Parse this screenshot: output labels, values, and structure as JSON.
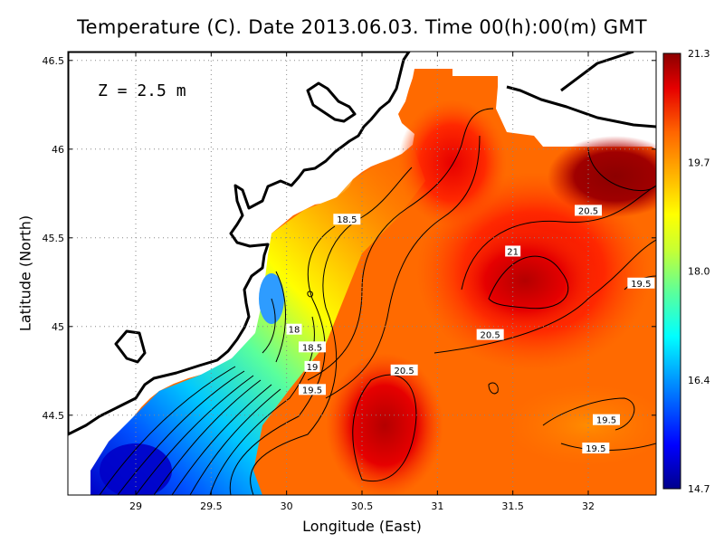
{
  "title": "Temperature (C). Date 2013.06.03. Time 00(h):00(m) GMT",
  "depth_label": "Z = 2.5 m",
  "x_axis": {
    "label": "Longitude (East)",
    "range": [
      28.55,
      32.45
    ],
    "ticks": [
      29,
      29.5,
      30,
      30.5,
      31,
      31.5,
      32
    ],
    "tick_labels": [
      "29",
      "29.5",
      "30",
      "30.5",
      "31",
      "31.5",
      "32"
    ]
  },
  "y_axis": {
    "label": "Latitude (North)",
    "range": [
      44.05,
      46.55
    ],
    "ticks": [
      44.5,
      45,
      45.5,
      46,
      46.5
    ],
    "tick_labels": [
      "44.5",
      "45",
      "45.5",
      "46",
      "46.5"
    ]
  },
  "grid": "dotted",
  "colorbar": {
    "min": 14.7,
    "max": 21.3,
    "tick_labels": [
      "21.3",
      "19.7",
      "18.0",
      "16.4",
      "14.7"
    ],
    "colors": [
      "#00008c",
      "#0000ff",
      "#0096ff",
      "#00ffff",
      "#5aff9c",
      "#c8ff32",
      "#ffff00",
      "#ffb400",
      "#ff6400",
      "#e60000",
      "#8c0000"
    ]
  },
  "contour_labels": [
    {
      "text": "18.5",
      "lon": 30.4,
      "lat": 45.6
    },
    {
      "text": "20.5",
      "lon": 32.0,
      "lat": 45.65
    },
    {
      "text": "21",
      "lon": 31.5,
      "lat": 45.42
    },
    {
      "text": "19.5",
      "lon": 32.35,
      "lat": 45.24
    },
    {
      "text": "18",
      "lon": 30.05,
      "lat": 44.98
    },
    {
      "text": "18.5",
      "lon": 30.17,
      "lat": 44.88
    },
    {
      "text": "20.5",
      "lon": 31.35,
      "lat": 44.95
    },
    {
      "text": "19",
      "lon": 30.17,
      "lat": 44.77
    },
    {
      "text": "20.5",
      "lon": 30.78,
      "lat": 44.75
    },
    {
      "text": "19.5",
      "lon": 30.17,
      "lat": 44.64
    },
    {
      "text": "19.5",
      "lon": 32.12,
      "lat": 44.47
    },
    {
      "text": "19.5",
      "lon": 32.05,
      "lat": 44.31
    }
  ]
}
